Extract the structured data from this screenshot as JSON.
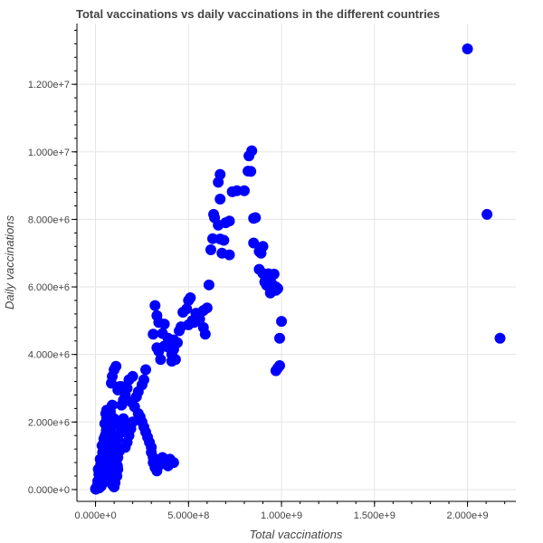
{
  "chart_data": {
    "type": "scatter",
    "title": "Total vaccinations vs daily vaccinations in the different countries",
    "xlabel": "Total vaccinations",
    "ylabel": "Daily vaccinations",
    "xlim": [
      -100000000,
      2260000000
    ],
    "ylim": [
      -350000,
      13800000
    ],
    "x_ticks": [
      0,
      500000000,
      1000000000,
      1500000000,
      2000000000
    ],
    "x_tick_labels": [
      "0.000e+0",
      "5.000e+8",
      "1.000e+9",
      "1.500e+9",
      "2.000e+9"
    ],
    "y_ticks": [
      0,
      2000000,
      4000000,
      6000000,
      8000000,
      10000000,
      12000000
    ],
    "y_tick_labels": [
      "0.000e+0",
      "2.000e+6",
      "4.000e+6",
      "6.000e+6",
      "8.000e+6",
      "1.000e+7",
      "1.200e+7"
    ],
    "grid": true,
    "marker_color": "#0000ff",
    "series": [
      {
        "points": [
          [
            2000000000,
            13050000
          ],
          [
            2105000000,
            8150000
          ],
          [
            2175000000,
            4480000
          ],
          [
            840000000,
            10030000
          ],
          [
            825000000,
            9880000
          ],
          [
            835000000,
            9420000
          ],
          [
            820000000,
            9430000
          ],
          [
            670000000,
            9330000
          ],
          [
            660000000,
            9100000
          ],
          [
            760000000,
            8850000
          ],
          [
            800000000,
            8850000
          ],
          [
            735000000,
            8820000
          ],
          [
            670000000,
            8600000
          ],
          [
            635000000,
            8150000
          ],
          [
            640000000,
            8050000
          ],
          [
            720000000,
            7950000
          ],
          [
            700000000,
            7900000
          ],
          [
            660000000,
            7830000
          ],
          [
            850000000,
            8030000
          ],
          [
            860000000,
            8050000
          ],
          [
            630000000,
            7430000
          ],
          [
            670000000,
            7420000
          ],
          [
            690000000,
            7380000
          ],
          [
            850000000,
            7300000
          ],
          [
            620000000,
            7100000
          ],
          [
            680000000,
            7000000
          ],
          [
            720000000,
            6950000
          ],
          [
            880000000,
            7050000
          ],
          [
            890000000,
            7000000
          ],
          [
            900000000,
            7200000
          ],
          [
            880000000,
            6520000
          ],
          [
            900000000,
            6400000
          ],
          [
            930000000,
            6390000
          ],
          [
            940000000,
            6200000
          ],
          [
            960000000,
            6380000
          ],
          [
            910000000,
            6150000
          ],
          [
            920000000,
            6050000
          ],
          [
            950000000,
            6080000
          ],
          [
            970000000,
            6000000
          ],
          [
            940000000,
            5820000
          ],
          [
            970000000,
            5900000
          ],
          [
            980000000,
            5950000
          ],
          [
            610000000,
            6060000
          ],
          [
            1000000000,
            4980000
          ],
          [
            990000000,
            4480000
          ],
          [
            980000000,
            3600000
          ],
          [
            990000000,
            3670000
          ],
          [
            970000000,
            3520000
          ],
          [
            320000000,
            5450000
          ],
          [
            330000000,
            5150000
          ],
          [
            340000000,
            4950000
          ],
          [
            370000000,
            4900000
          ],
          [
            310000000,
            4600000
          ],
          [
            360000000,
            4620000
          ],
          [
            390000000,
            4480000
          ],
          [
            420000000,
            4430000
          ],
          [
            450000000,
            4700000
          ],
          [
            460000000,
            4820000
          ],
          [
            500000000,
            5600000
          ],
          [
            510000000,
            5680000
          ],
          [
            490000000,
            5350000
          ],
          [
            470000000,
            5250000
          ],
          [
            540000000,
            5220000
          ],
          [
            560000000,
            5050000
          ],
          [
            520000000,
            5000000
          ],
          [
            580000000,
            5300000
          ],
          [
            600000000,
            5380000
          ],
          [
            500000000,
            4880000
          ],
          [
            530000000,
            4950000
          ],
          [
            580000000,
            4800000
          ],
          [
            590000000,
            4600000
          ],
          [
            330000000,
            4200000
          ],
          [
            340000000,
            4100000
          ],
          [
            370000000,
            4250000
          ],
          [
            350000000,
            3850000
          ],
          [
            400000000,
            4300000
          ],
          [
            410000000,
            4000000
          ],
          [
            410000000,
            3800000
          ],
          [
            430000000,
            3850000
          ],
          [
            440000000,
            4350000
          ],
          [
            420000000,
            4150000
          ],
          [
            390000000,
            4220000
          ],
          [
            270000000,
            3550000
          ],
          [
            260000000,
            3250000
          ],
          [
            250000000,
            3100000
          ],
          [
            230000000,
            2900000
          ],
          [
            220000000,
            2750000
          ],
          [
            200000000,
            3350000
          ],
          [
            180000000,
            3250000
          ],
          [
            170000000,
            3000000
          ],
          [
            160000000,
            2800000
          ],
          [
            140000000,
            3050000
          ],
          [
            130000000,
            3050000
          ],
          [
            120000000,
            2950000
          ],
          [
            110000000,
            3650000
          ],
          [
            100000000,
            3550000
          ],
          [
            90000000,
            3350000
          ],
          [
            85000000,
            3150000
          ],
          [
            150000000,
            2650000
          ],
          [
            140000000,
            2500000
          ],
          [
            190000000,
            2600000
          ],
          [
            210000000,
            2450000
          ],
          [
            230000000,
            2250000
          ],
          [
            240000000,
            2150000
          ],
          [
            250000000,
            2000000
          ],
          [
            260000000,
            1850000
          ],
          [
            270000000,
            1700000
          ],
          [
            280000000,
            1550000
          ],
          [
            290000000,
            1400000
          ],
          [
            300000000,
            1250000
          ],
          [
            300000000,
            1100000
          ],
          [
            310000000,
            950000
          ],
          [
            310000000,
            800000
          ],
          [
            320000000,
            650000
          ],
          [
            330000000,
            550000
          ],
          [
            350000000,
            750000
          ],
          [
            360000000,
            950000
          ],
          [
            380000000,
            850000
          ],
          [
            390000000,
            700000
          ],
          [
            400000000,
            900000
          ],
          [
            420000000,
            800000
          ],
          [
            200000000,
            2000000
          ],
          [
            190000000,
            1800000
          ],
          [
            180000000,
            1600000
          ],
          [
            170000000,
            1400000
          ],
          [
            160000000,
            1250000
          ],
          [
            170000000,
            1950000
          ],
          [
            150000000,
            2100000
          ],
          [
            130000000,
            1900000
          ],
          [
            140000000,
            1700000
          ],
          [
            120000000,
            1500000
          ],
          [
            110000000,
            1350000
          ],
          [
            130000000,
            1150000
          ],
          [
            120000000,
            950000
          ],
          [
            110000000,
            800000
          ],
          [
            100000000,
            700000
          ],
          [
            120000000,
            600000
          ],
          [
            90000000,
            2500000
          ],
          [
            80000000,
            2300000
          ],
          [
            70000000,
            2200000
          ],
          [
            60000000,
            2100000
          ],
          [
            50000000,
            1950000
          ],
          [
            100000000,
            2100000
          ],
          [
            95000000,
            1900000
          ],
          [
            85000000,
            1700000
          ],
          [
            75000000,
            1500000
          ],
          [
            65000000,
            1300000
          ],
          [
            55000000,
            1100000
          ],
          [
            45000000,
            950000
          ],
          [
            40000000,
            800000
          ],
          [
            35000000,
            650000
          ],
          [
            30000000,
            500000
          ],
          [
            25000000,
            400000
          ],
          [
            20000000,
            300000
          ],
          [
            15000000,
            200000
          ],
          [
            10000000,
            120000
          ],
          [
            5000000,
            60000
          ],
          [
            0,
            20000
          ],
          [
            2000000,
            10000
          ],
          [
            8000000,
            80000
          ],
          [
            12000000,
            250000
          ],
          [
            18000000,
            450000
          ],
          [
            22000000,
            600000
          ],
          [
            28000000,
            750000
          ],
          [
            32000000,
            900000
          ],
          [
            38000000,
            1100000
          ],
          [
            42000000,
            1250000
          ],
          [
            48000000,
            1400000
          ],
          [
            52000000,
            1600000
          ],
          [
            58000000,
            1750000
          ],
          [
            62000000,
            1850000
          ],
          [
            68000000,
            2000000
          ],
          [
            72000000,
            2100000
          ],
          [
            78000000,
            1950000
          ],
          [
            82000000,
            1800000
          ],
          [
            88000000,
            1600000
          ],
          [
            92000000,
            1450000
          ],
          [
            98000000,
            1300000
          ],
          [
            102000000,
            1150000
          ],
          [
            108000000,
            1000000
          ],
          [
            112000000,
            850000
          ],
          [
            118000000,
            700000
          ],
          [
            60000000,
            600000
          ],
          [
            70000000,
            400000
          ],
          [
            80000000,
            250000
          ],
          [
            90000000,
            150000
          ],
          [
            100000000,
            80000
          ],
          [
            50000000,
            300000
          ],
          [
            40000000,
            200000
          ],
          [
            30000000,
            100000
          ],
          [
            20000000,
            50000
          ],
          [
            65000000,
            1000000
          ],
          [
            75000000,
            800000
          ],
          [
            85000000,
            500000
          ],
          [
            95000000,
            350000
          ],
          [
            105000000,
            200000
          ],
          [
            115000000,
            400000
          ],
          [
            55000000,
            2250000
          ],
          [
            60000000,
            2350000
          ],
          [
            45000000,
            1500000
          ],
          [
            35000000,
            1300000
          ],
          [
            25000000,
            900000
          ],
          [
            15000000,
            600000
          ]
        ]
      }
    ]
  }
}
